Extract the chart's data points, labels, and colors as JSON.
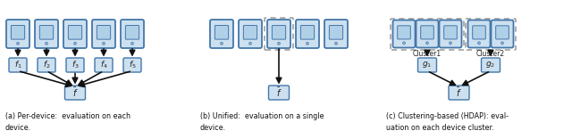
{
  "bg_color": "#ffffff",
  "device_fill": "#cce0f0",
  "device_stroke": "#4477aa",
  "screen_fill": "#b0d0e8",
  "box_fill": "#cce0f0",
  "box_stroke": "#4477aa",
  "dashed_stroke": "#999999",
  "arrow_color": "#111111",
  "text_color": "#222222",
  "caption_color": "#111111",
  "panel_a_caption": "(a) Per-device:  evaluation on each\ndevice.",
  "panel_b_caption": "(b) Unified:  evaluation on a single\ndevice.",
  "panel_c_caption": "(c) Clustering-based (HDAP): eval-\nuation on each device cluster.",
  "panel_a_labels": [
    "1",
    "2",
    "3",
    "4",
    "5"
  ],
  "panel_c_cluster1_text": "Cluster1",
  "panel_c_cluster2_text": "Cluster2"
}
